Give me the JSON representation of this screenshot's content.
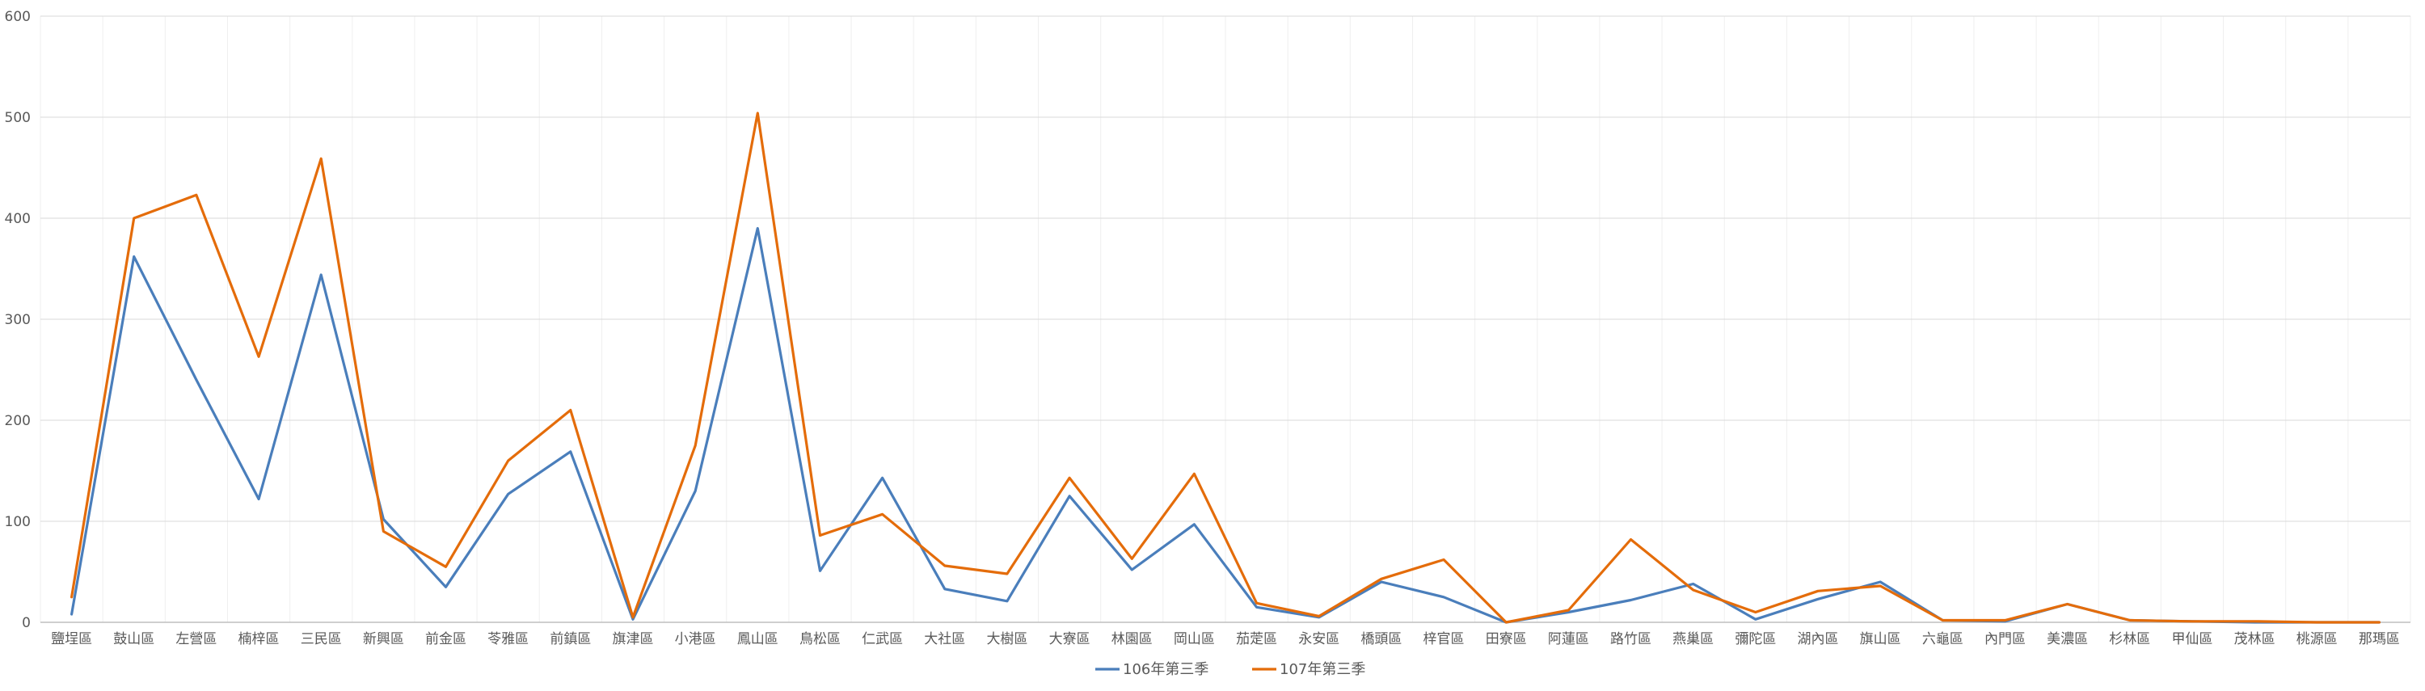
{
  "chart_data": {
    "type": "line",
    "categories": [
      "鹽埕區",
      "鼓山區",
      "左營區",
      "楠梓區",
      "三民區",
      "新興區",
      "前金區",
      "苓雅區",
      "前鎮區",
      "旗津區",
      "小港區",
      "鳳山區",
      "鳥松區",
      "仁武區",
      "大社區",
      "大樹區",
      "大寮區",
      "林園區",
      "岡山區",
      "茄萣區",
      "永安區",
      "橋頭區",
      "梓官區",
      "田寮區",
      "阿蓮區",
      "路竹區",
      "燕巢區",
      "彌陀區",
      "湖內區",
      "旗山區",
      "六龜區",
      "內門區",
      "美濃區",
      "杉林區",
      "甲仙區",
      "茂林區",
      "桃源區",
      "那瑪區"
    ],
    "series": [
      {
        "name": "106年第三季",
        "color": "#4a7ebb",
        "values": [
          8,
          362,
          240,
          122,
          344,
          102,
          35,
          127,
          169,
          3,
          130,
          390,
          51,
          143,
          33,
          21,
          125,
          52,
          97,
          15,
          5,
          40,
          25,
          0,
          10,
          22,
          38,
          3,
          23,
          40,
          2,
          1,
          18,
          2,
          1,
          0,
          0,
          0
        ]
      },
      {
        "name": "107年第三季",
        "color": "#e46c0a",
        "values": [
          25,
          400,
          423,
          263,
          459,
          90,
          55,
          160,
          210,
          5,
          175,
          504,
          86,
          107,
          56,
          48,
          143,
          63,
          147,
          19,
          6,
          43,
          62,
          0,
          12,
          82,
          32,
          10,
          31,
          36,
          2,
          2,
          18,
          2,
          1,
          1,
          0,
          0
        ]
      }
    ],
    "yticks": [
      "0",
      "100",
      "200",
      "300",
      "400",
      "500",
      "600"
    ],
    "ylim": [
      0,
      600
    ],
    "title": "",
    "xlabel": "",
    "ylabel": "",
    "grid": true,
    "legend_position": "bottom"
  }
}
